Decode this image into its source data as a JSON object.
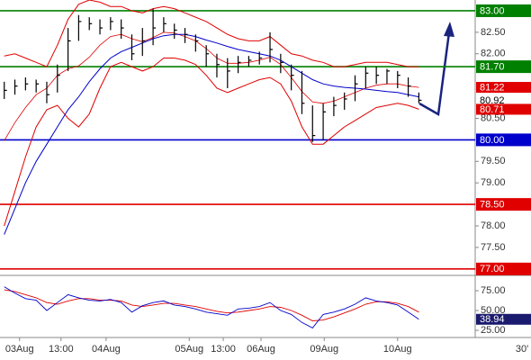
{
  "chart_data": {
    "type": "ohlc",
    "timeframe": "30'",
    "xlim": [
      -0.4,
      44.3
    ],
    "ylim": [
      76.85,
      83.25
    ],
    "yticks": [
      {
        "value": 82.5,
        "label": "82.50"
      },
      {
        "value": 82,
        "label": "82.00"
      },
      {
        "value": 80.5,
        "label": "80.50"
      },
      {
        "value": 79.5,
        "label": "79.50"
      },
      {
        "value": 79,
        "label": "79.00"
      },
      {
        "value": 78,
        "label": "78.00"
      },
      {
        "value": 77.5,
        "label": "77.50"
      }
    ],
    "xticks": [
      {
        "value": 1.44,
        "label": "03Aug"
      },
      {
        "value": 5.34,
        "label": "13:00"
      },
      {
        "value": 9.58,
        "label": "04Aug"
      },
      {
        "value": 17.4,
        "label": "05Aug"
      },
      {
        "value": 20.6,
        "label": "13:00"
      },
      {
        "value": 24.15,
        "label": "06Aug"
      },
      {
        "value": 30.1,
        "label": "09Aug"
      },
      {
        "value": 37.0,
        "label": "10Aug"
      }
    ],
    "bar_color": "#000000",
    "high": [
      81.35,
      81.4,
      81.45,
      81.4,
      81.35,
      81.75,
      82.6,
      82.9,
      82.85,
      82.8,
      82.85,
      82.8,
      82.45,
      82.6,
      83.05,
      82.85,
      82.7,
      82.6,
      82.45,
      82.2,
      82.0,
      81.9,
      81.95,
      81.95,
      82.05,
      82.5,
      82.0,
      81.75,
      81.6,
      80.8,
      80.85,
      81.0,
      81.1,
      81.5,
      81.7,
      81.7,
      81.65,
      81.6,
      81.45,
      81.1
    ],
    "low": [
      80.95,
      81.05,
      81.15,
      81.1,
      80.85,
      81.1,
      81.6,
      82.3,
      82.55,
      82.45,
      82.55,
      82.35,
      81.85,
      81.95,
      82.2,
      82.5,
      82.35,
      82.25,
      82.05,
      81.7,
      81.45,
      81.2,
      81.55,
      81.7,
      81.75,
      81.8,
      81.55,
      81.15,
      80.6,
      79.95,
      80.0,
      80.55,
      80.7,
      80.9,
      81.2,
      81.3,
      81.3,
      81.2,
      81.0,
      80.85
    ],
    "close": [
      81.15,
      81.25,
      81.3,
      81.3,
      81.05,
      81.5,
      82.3,
      82.75,
      82.7,
      82.6,
      82.75,
      82.6,
      82.0,
      82.3,
      82.6,
      82.7,
      82.55,
      82.45,
      82.3,
      82.0,
      81.75,
      81.6,
      81.8,
      81.85,
      81.9,
      82.1,
      81.8,
      81.5,
      80.85,
      80.1,
      80.65,
      80.8,
      80.95,
      81.3,
      81.55,
      81.5,
      81.6,
      81.5,
      81.25,
      80.92
    ],
    "bands": {
      "color": "#e00000",
      "upper": [
        81.95,
        82.0,
        81.9,
        81.8,
        81.7,
        82.2,
        82.8,
        83.15,
        83.25,
        83.2,
        83.1,
        83.1,
        83.0,
        82.95,
        83.05,
        83.1,
        83.05,
        82.95,
        82.85,
        82.75,
        82.6,
        82.45,
        82.35,
        82.3,
        82.3,
        82.4,
        82.2,
        82.0,
        81.95,
        81.85,
        81.8,
        81.7,
        81.7,
        81.75,
        81.8,
        81.8,
        81.8,
        81.75,
        81.7,
        81.7
      ],
      "middle": [
        79.98,
        80.4,
        80.75,
        81.05,
        81.2,
        81.5,
        81.65,
        81.72,
        81.92,
        82.2,
        82.4,
        82.45,
        82.35,
        82.28,
        82.38,
        82.5,
        82.48,
        82.4,
        82.3,
        82.12,
        81.9,
        81.78,
        81.78,
        81.8,
        81.85,
        81.92,
        81.75,
        81.45,
        81.12,
        80.88,
        80.85,
        80.9,
        81.0,
        81.1,
        81.2,
        81.27,
        81.3,
        81.3,
        81.25,
        81.22
      ],
      "lower": [
        78.0,
        78.8,
        79.6,
        80.3,
        80.7,
        80.8,
        80.5,
        80.3,
        80.6,
        81.2,
        81.7,
        81.8,
        81.7,
        81.6,
        81.7,
        81.9,
        81.9,
        81.85,
        81.75,
        81.5,
        81.2,
        81.1,
        81.2,
        81.3,
        81.4,
        81.45,
        81.3,
        80.9,
        80.3,
        79.9,
        79.9,
        80.1,
        80.3,
        80.45,
        80.6,
        80.75,
        80.8,
        80.85,
        80.8,
        80.71
      ]
    },
    "ma": {
      "color": "#0000cc",
      "values": [
        77.8,
        78.4,
        79.0,
        79.5,
        79.9,
        80.3,
        80.7,
        81.0,
        81.35,
        81.65,
        81.9,
        82.05,
        82.15,
        82.25,
        82.35,
        82.42,
        82.45,
        82.45,
        82.4,
        82.32,
        82.25,
        82.17,
        82.1,
        82.05,
        82.0,
        81.95,
        81.85,
        81.7,
        81.55,
        81.4,
        81.3,
        81.25,
        81.22,
        81.2,
        81.18,
        81.15,
        81.12,
        81.1,
        81.05,
        81.0
      ]
    },
    "levels": [
      {
        "value": 83,
        "label": "83.00",
        "color": "#008000"
      },
      {
        "value": 81.7,
        "label": "81.70",
        "color": "#008000"
      },
      {
        "value": 80,
        "label": "80.00",
        "color": "#0000cc"
      },
      {
        "value": 78.5,
        "label": "78.50",
        "color": "#e00000"
      },
      {
        "value": 77,
        "label": "77.00",
        "color": "#e00000"
      }
    ],
    "price_labels": [
      {
        "value": 81.22,
        "color": "#e00000",
        "text_color": "#ffffff"
      },
      {
        "value": 80.92,
        "color": "#ffffff",
        "text_color": "#000000"
      },
      {
        "value": 80.71,
        "color": "#e00000",
        "text_color": "#ffffff"
      }
    ],
    "rsi": {
      "ylim": [
        16,
        92
      ],
      "yticks": [
        {
          "value": 75,
          "label": "75.00"
        },
        {
          "value": 50,
          "label": "50.00"
        },
        {
          "value": 25,
          "label": "25.00"
        }
      ],
      "color": "#0000cc",
      "signal_color": "#e00000",
      "values": [
        80,
        72,
        65,
        63,
        50,
        60,
        70,
        66,
        63,
        62,
        64,
        60,
        48,
        56,
        60,
        62,
        57,
        55,
        52,
        48,
        46,
        44,
        52,
        53,
        55,
        60,
        50,
        45,
        35,
        28,
        45,
        48,
        52,
        58,
        66,
        62,
        60,
        57,
        48,
        38.94
      ],
      "signal": [
        76,
        74,
        70,
        66,
        60,
        58,
        62,
        65,
        65,
        63,
        63,
        62,
        57,
        55,
        57,
        59,
        59,
        57,
        55,
        52,
        49,
        47,
        48,
        50,
        52,
        55,
        54,
        50,
        44,
        37,
        38,
        42,
        47,
        52,
        58,
        61,
        61,
        59,
        55,
        48
      ],
      "label": {
        "value": 38.94,
        "color": "#1a1a6e",
        "text_color": "#ffffff"
      }
    }
  }
}
